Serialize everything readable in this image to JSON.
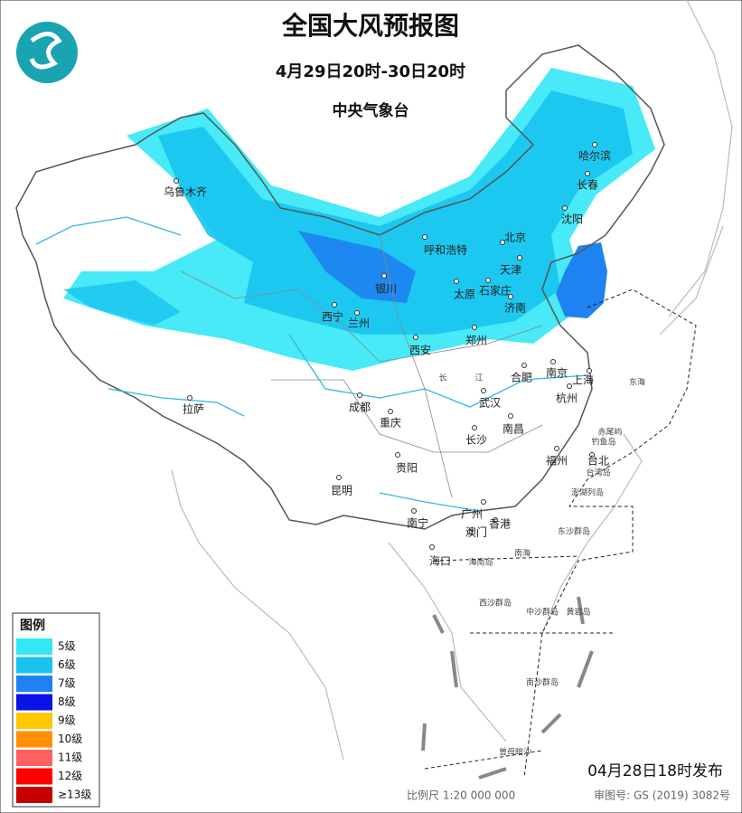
{
  "header": {
    "title": "全国大风预报图",
    "time": "4月29日20时-30日20时",
    "issuer": "中央气象台"
  },
  "legend": {
    "title": "图例",
    "items": [
      {
        "label": "5级",
        "color": "#33e8f5"
      },
      {
        "label": "6级",
        "color": "#18c4ef"
      },
      {
        "label": "7级",
        "color": "#1e82f0"
      },
      {
        "label": "8级",
        "color": "#0a14e8"
      },
      {
        "label": "9级",
        "color": "#ffc800"
      },
      {
        "label": "10级",
        "color": "#ff9000"
      },
      {
        "label": "11级",
        "color": "#ff6060"
      },
      {
        "label": "12级",
        "color": "#ff0000"
      },
      {
        "label": "≥13级",
        "color": "#c80000"
      }
    ]
  },
  "cities": [
    "乌鲁木齐",
    "哈尔滨",
    "长春",
    "沈阳",
    "呼和浩特",
    "北京",
    "天津",
    "银川",
    "太原",
    "石家庄",
    "济南",
    "西宁",
    "兰州",
    "西安",
    "郑州",
    "合肥",
    "南京",
    "上海",
    "杭州",
    "拉萨",
    "成都",
    "武汉",
    "重庆",
    "南昌",
    "长沙",
    "福州",
    "台北",
    "贵阳",
    "昆明",
    "南宁",
    "广州",
    "澳门",
    "香港",
    "海口"
  ],
  "labels": [
    "东海",
    "南海",
    "长",
    "江",
    "台湾岛",
    "海南岛",
    "钓鱼岛",
    "赤尾屿",
    "澎湖列岛",
    "东沙群岛",
    "西沙群岛",
    "中沙群岛",
    "黄岩岛",
    "南沙群岛",
    "曾母暗沙"
  ],
  "footer": {
    "issued": "04月28日18时发布",
    "scale": "比例尺 1:20 000 000",
    "approval": "审图号: GS (2019) 3082号"
  }
}
